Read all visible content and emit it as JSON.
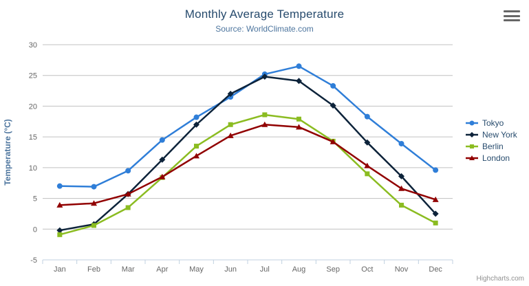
{
  "chart": {
    "title": "Monthly Average Temperature",
    "subtitle": "Source: WorldClimate.com",
    "credits": "Highcharts.com",
    "context_menu_icon": "hamburger-menu"
  },
  "chart_data": {
    "type": "line",
    "title": "Monthly Average Temperature",
    "subtitle": "Source: WorldClimate.com",
    "categories": [
      "Jan",
      "Feb",
      "Mar",
      "Apr",
      "May",
      "Jun",
      "Jul",
      "Aug",
      "Sep",
      "Oct",
      "Nov",
      "Dec"
    ],
    "xlabel": "",
    "ylabel": "Temperature (°C)",
    "ylim": [
      -5,
      30
    ],
    "ytick_step": 5,
    "yticks": [
      -5,
      0,
      5,
      10,
      15,
      20,
      25,
      30
    ],
    "grid": "horizontal",
    "grid_color": "#C0C0C0",
    "axis_line_color": "#C0D0E0",
    "tick_label_color": "#666666",
    "axis_title_color": "#4d759e",
    "legend_position": "right",
    "legend_text_color": "#274b6d",
    "series": [
      {
        "name": "Tokyo",
        "color": "#2f7ed8",
        "marker": "circle",
        "values": [
          7.0,
          6.9,
          9.5,
          14.5,
          18.2,
          21.5,
          25.2,
          26.5,
          23.3,
          18.3,
          13.9,
          9.6
        ]
      },
      {
        "name": "New York",
        "color": "#0d233a",
        "marker": "diamond",
        "values": [
          -0.2,
          0.8,
          5.7,
          11.3,
          17.0,
          22.0,
          24.8,
          24.1,
          20.1,
          14.1,
          8.6,
          2.5
        ]
      },
      {
        "name": "Berlin",
        "color": "#8bbc21",
        "marker": "square",
        "values": [
          -0.9,
          0.6,
          3.5,
          8.4,
          13.5,
          17.0,
          18.6,
          17.9,
          14.3,
          9.0,
          3.9,
          1.0
        ]
      },
      {
        "name": "London",
        "color": "#910000",
        "marker": "triangle",
        "values": [
          3.9,
          4.2,
          5.7,
          8.5,
          11.9,
          15.2,
          17.0,
          16.6,
          14.2,
          10.3,
          6.6,
          4.8
        ]
      }
    ]
  }
}
